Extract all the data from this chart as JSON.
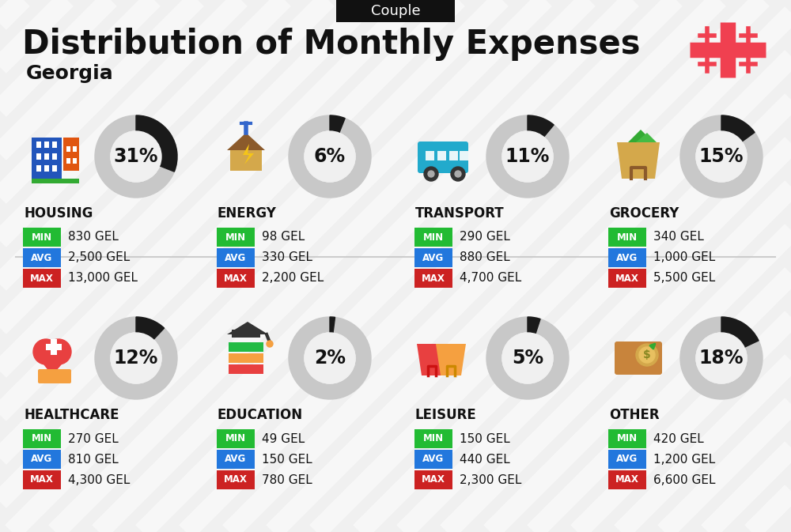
{
  "title": "Distribution of Monthly Expenses",
  "subtitle": "Georgia",
  "tag": "Couple",
  "bg_color": "#f0f0f0",
  "categories": [
    {
      "name": "HOUSING",
      "pct": 31,
      "min_val": "830 GEL",
      "avg_val": "2,500 GEL",
      "max_val": "13,000 GEL",
      "col": 0,
      "row": 0
    },
    {
      "name": "ENERGY",
      "pct": 6,
      "min_val": "98 GEL",
      "avg_val": "330 GEL",
      "max_val": "2,200 GEL",
      "col": 1,
      "row": 0
    },
    {
      "name": "TRANSPORT",
      "pct": 11,
      "min_val": "290 GEL",
      "avg_val": "880 GEL",
      "max_val": "4,700 GEL",
      "col": 2,
      "row": 0
    },
    {
      "name": "GROCERY",
      "pct": 15,
      "min_val": "340 GEL",
      "avg_val": "1,000 GEL",
      "max_val": "5,500 GEL",
      "col": 3,
      "row": 0
    },
    {
      "name": "HEALTHCARE",
      "pct": 12,
      "min_val": "270 GEL",
      "avg_val": "810 GEL",
      "max_val": "4,300 GEL",
      "col": 0,
      "row": 1
    },
    {
      "name": "EDUCATION",
      "pct": 2,
      "min_val": "49 GEL",
      "avg_val": "150 GEL",
      "max_val": "780 GEL",
      "col": 1,
      "row": 1
    },
    {
      "name": "LEISURE",
      "pct": 5,
      "min_val": "150 GEL",
      "avg_val": "440 GEL",
      "max_val": "2,300 GEL",
      "col": 2,
      "row": 1
    },
    {
      "name": "OTHER",
      "pct": 18,
      "min_val": "420 GEL",
      "avg_val": "1,200 GEL",
      "max_val": "6,600 GEL",
      "col": 3,
      "row": 1
    }
  ],
  "min_color": "#22bb33",
  "avg_color": "#2277dd",
  "max_color": "#cc2222",
  "dark_color": "#111111",
  "arc_color": "#1a1a1a",
  "arc_bg_color": "#c8c8c8",
  "arc_white": "#f0f0f0",
  "stripe_color": "#ffffff",
  "flag_color": "#f04050",
  "title_fontsize": 30,
  "subtitle_fontsize": 18,
  "tag_fontsize": 13,
  "cat_fontsize": 12,
  "val_fontsize": 11,
  "pct_fontsize": 17
}
